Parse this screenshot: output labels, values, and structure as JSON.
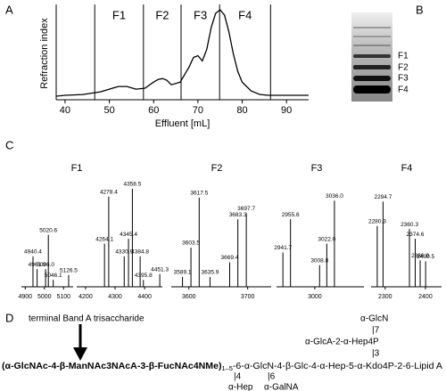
{
  "panel_labels": [
    "A",
    "B",
    "C",
    "D"
  ],
  "chart_data": [
    {
      "type": "line",
      "x_label": "Effluent [mL]",
      "y_label": "Refraction index",
      "x": [
        38,
        40,
        44,
        48,
        50,
        52,
        54,
        56,
        58,
        60,
        61,
        62,
        63,
        64,
        66,
        68,
        69,
        70,
        71,
        72,
        73,
        74,
        75,
        76,
        77,
        78,
        79,
        80,
        82,
        84,
        86,
        90,
        95
      ],
      "values": [
        3.8,
        4.8,
        5.7,
        8.6,
        11.4,
        14.3,
        14.3,
        11.4,
        12.4,
        19,
        21.9,
        22.9,
        21,
        16.2,
        19,
        35.2,
        45.7,
        47.6,
        41.9,
        54.3,
        78.1,
        93.3,
        97.1,
        91.4,
        73.3,
        49.5,
        30.5,
        19,
        9.5,
        5.7,
        4.8,
        4.8,
        4.8
      ],
      "color": "#000000",
      "xlim": [
        38,
        95
      ],
      "xticks": [
        40,
        50,
        60,
        70,
        80,
        90
      ],
      "ylim": [
        0,
        100
      ],
      "fraction_bounds": [
        46.7,
        57.7,
        66.2,
        74.9,
        86.4
      ],
      "fraction_labels": [
        "F1",
        "F2",
        "F3",
        "F4"
      ]
    },
    {
      "type": "spectrum",
      "title": "F1",
      "x": [
        4940.4,
        4961.9,
        5006.0,
        5020.6,
        5046.1,
        5126.5
      ],
      "values": [
        31,
        18,
        18,
        53,
        7,
        12
      ],
      "peak_labels": [
        "4940.4",
        "4961.9",
        "5006.0",
        "5020.6",
        "5046.1",
        "5126.5"
      ],
      "xlim": [
        4880,
        5150
      ],
      "xticks": [
        4900,
        5000,
        5100
      ],
      "ylim": [
        0,
        100
      ]
    },
    {
      "type": "spectrum",
      "x": [
        4264.1,
        4278.4,
        4330.9,
        4345.4,
        4358.5,
        4384.8,
        4395.8,
        4451.3
      ],
      "values": [
        44,
        92,
        31,
        49,
        100,
        31,
        7,
        13
      ],
      "peak_labels": [
        "4264.1",
        "4278.4",
        "4330.9",
        "4345.4",
        "4358.5",
        "4384.8",
        "4395.8",
        "4451.3"
      ],
      "xlim": [
        4170,
        4460
      ],
      "xticks": [
        4200,
        4300,
        4400
      ],
      "ylim": [
        0,
        100
      ]
    },
    {
      "type": "spectrum",
      "title": "F2",
      "x": [
        3589.1,
        3603.5,
        3617.5,
        3635.9,
        3669.4,
        3683.3,
        3697.7
      ],
      "values": [
        10,
        40,
        91,
        10,
        25,
        69,
        75
      ],
      "peak_labels": [
        "3589.1",
        "3603.5",
        "3617.5",
        "3635.9",
        "3669.4",
        "3683.3",
        "3697.7"
      ],
      "xlim": [
        3570,
        3740
      ],
      "xticks": [
        3600,
        3700
      ],
      "ylim": [
        0,
        100
      ]
    },
    {
      "type": "spectrum",
      "title": "F3",
      "x": [
        2941.7,
        2955.6,
        3008.8,
        3022.0,
        3036.0
      ],
      "values": [
        35,
        69,
        22,
        44,
        88
      ],
      "peak_labels": [
        "2941.7",
        "2955.6",
        "3008.8",
        "3022.0",
        "3036.0"
      ],
      "xlim": [
        2930,
        3090
      ],
      "xticks": [
        3000
      ],
      "ylim": [
        0,
        100
      ]
    },
    {
      "type": "spectrum",
      "title": "F4",
      "x": [
        2280.3,
        2294.7,
        2360.3,
        2374.6,
        2386.9,
        2400.5
      ],
      "values": [
        62,
        87,
        59,
        49,
        27,
        26
      ],
      "peak_labels": [
        "2280.3",
        "2294.7",
        "2360.3",
        "2374.6",
        "2386.9",
        "2400.5"
      ],
      "xlim": [
        2265,
        2440
      ],
      "xticks": [
        2300,
        2400
      ],
      "ylim": [
        0,
        100
      ]
    }
  ],
  "gel": {
    "bands": [
      "F1",
      "F2",
      "F3",
      "F4"
    ]
  },
  "structure": {
    "arrow_label": "terminal Band A trisaccharide",
    "top_branch": "α-GlcN",
    "top_link": "|7",
    "mid_branch": "α-GlcA-2-α-Hep4P",
    "mid_link": "|3",
    "main_bold": "(α-GlcNAc-4-β-ManNAc3NAcA-3-β-FucNAc4NMe)",
    "main_sub": "1–5",
    "main_rest": "-6-α-GlcN-4-β-Glc-4-α-Hep-5-α-Kdo4P-2-6-Lipid A",
    "bottom_link_1": "|4",
    "bottom_link_2": "|6",
    "bottom_branch_1": "α-Hep",
    "bottom_branch_2": "α-GalNA"
  }
}
